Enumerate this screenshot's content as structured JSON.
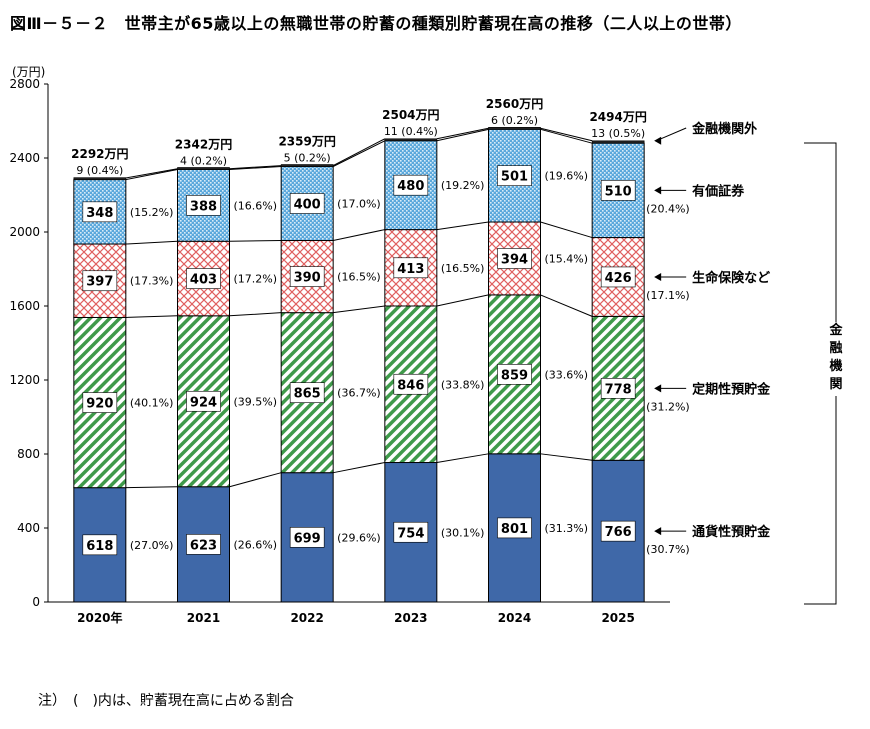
{
  "title": "図Ⅲ－５－２　世帯主が65歳以上の無職世帯の貯蓄の種類別貯蓄現在高の推移（二人以上の世帯）",
  "note": "注）　(　)内は、貯蓄現在高に占める割合",
  "chart_data": {
    "type": "bar",
    "stacked": true,
    "ylabel": "(万円)",
    "ylim": [
      0,
      2800
    ],
    "yticks": [
      "0",
      "400",
      "800",
      "1200",
      "1600",
      "2000",
      "2400",
      "2800"
    ],
    "categories": [
      "2020年",
      "2021",
      "2022",
      "2023",
      "2024",
      "2025"
    ],
    "totals": [
      "2292万円",
      "2342万円",
      "2359万円",
      "2504万円",
      "2560万円",
      "2494万円"
    ],
    "series": [
      {
        "name": "通貨性預貯金",
        "values": [
          618,
          623,
          699,
          754,
          801,
          766
        ],
        "percents": [
          "(27.0%)",
          "(26.6%)",
          "(29.6%)",
          "(30.1%)",
          "(31.3%)",
          "(30.7%)"
        ],
        "color": "#3f68a8",
        "pattern": "solid"
      },
      {
        "name": "定期性預貯金",
        "values": [
          920,
          924,
          865,
          846,
          859,
          778
        ],
        "percents": [
          "(40.1%)",
          "(39.5%)",
          "(36.7%)",
          "(33.8%)",
          "(33.6%)",
          "(31.2%)"
        ],
        "color": "#3f9a4a",
        "pattern": "diagonal"
      },
      {
        "name": "生命保険など",
        "values": [
          397,
          403,
          390,
          413,
          394,
          426
        ],
        "percents": [
          "(17.3%)",
          "(17.2%)",
          "(16.5%)",
          "(16.5%)",
          "(15.4%)",
          "(17.1%)"
        ],
        "color": "#e06060",
        "pattern": "crosshatch"
      },
      {
        "name": "有価証券",
        "values": [
          348,
          388,
          400,
          480,
          501,
          510
        ],
        "percents": [
          "(15.2%)",
          "(16.6%)",
          "(17.0%)",
          "(19.2%)",
          "(19.6%)",
          "(20.4%)"
        ],
        "color": "#5aa8dc",
        "pattern": "dots"
      },
      {
        "name": "金融機関外",
        "values": [
          9,
          4,
          5,
          11,
          6,
          13
        ],
        "labels": [
          "9 (0.4%)",
          "4 (0.2%)",
          "5 (0.2%)",
          "11 (0.4%)",
          "6 (0.2%)",
          "13 (0.5%)"
        ],
        "color": "#222222",
        "pattern": "solid"
      }
    ],
    "bracket_label": "金融機関",
    "grid": false,
    "legend": "right"
  }
}
